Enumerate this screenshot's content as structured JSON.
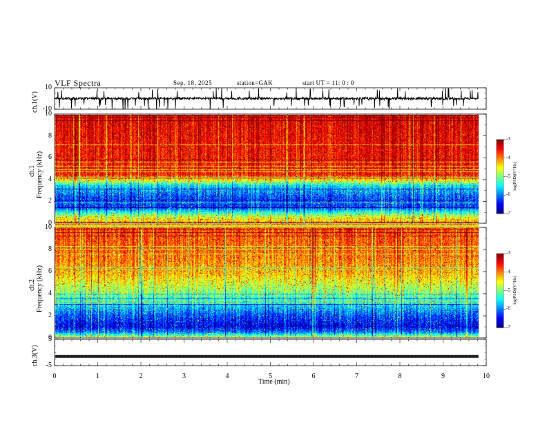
{
  "header": {
    "title": "VLF Spectra",
    "date": "Sep. 18, 2025",
    "station": "station=GAK",
    "start_ut": "start UT =   11: 0  : 0"
  },
  "chart_data": [
    {
      "type": "line",
      "name": "ch1-waveform",
      "ylabel": "ch.1(V)",
      "ylim": [
        -10,
        10
      ],
      "yticks": [
        "10",
        "-10"
      ],
      "xlim": [
        0,
        10
      ],
      "x_data_end": 9.82,
      "baseline": 0,
      "typical_amplitude": 2,
      "spike_amplitude": 10
    },
    {
      "type": "heatmap",
      "name": "ch1-spectrogram",
      "ylabel_line1": "ch.1",
      "ylabel_line2": "Frequency (kHz)",
      "ylim": [
        0,
        10
      ],
      "yticks": [
        "0",
        "2",
        "4",
        "6",
        "8",
        "10"
      ],
      "xlim": [
        0,
        10
      ],
      "x_data_end": 9.82,
      "colorbar": {
        "label": "log(PSD)(V²/Hz)",
        "range": [
          -7,
          -3
        ],
        "ticks": [
          "-3",
          "-4",
          "-5",
          "-6",
          "-7"
        ]
      },
      "level_profile": [
        {
          "f": 0.0,
          "v": -4.2
        },
        {
          "f": 0.5,
          "v": -4.5
        },
        {
          "f": 1.0,
          "v": -5.3
        },
        {
          "f": 1.5,
          "v": -6.3
        },
        {
          "f": 2.5,
          "v": -6.2
        },
        {
          "f": 3.5,
          "v": -5.6
        },
        {
          "f": 4.0,
          "v": -4.5
        },
        {
          "f": 4.5,
          "v": -3.6
        },
        {
          "f": 10.0,
          "v": -3.4
        }
      ],
      "gap_band_khz": [
        -0.5,
        0.0
      ]
    },
    {
      "type": "heatmap",
      "name": "ch2-spectrogram",
      "ylabel_line1": "ch.2",
      "ylabel_line2": "Frequency (kHz)",
      "ylim": [
        0,
        10
      ],
      "yticks": [
        "0",
        "2",
        "4",
        "6",
        "8",
        "10"
      ],
      "xlim": [
        0,
        10
      ],
      "x_data_end": 9.82,
      "colorbar": {
        "label": "log(PSD)(V²/Hz)",
        "range": [
          -7,
          -3
        ],
        "ticks": [
          "-3",
          "-4",
          "-5",
          "-6",
          "-7"
        ]
      },
      "level_profile": [
        {
          "f": 0.0,
          "v": -4.6
        },
        {
          "f": 0.5,
          "v": -6.0
        },
        {
          "f": 1.0,
          "v": -6.6
        },
        {
          "f": 2.0,
          "v": -6.2
        },
        {
          "f": 3.0,
          "v": -5.6
        },
        {
          "f": 4.0,
          "v": -5.0
        },
        {
          "f": 6.0,
          "v": -4.2
        },
        {
          "f": 8.0,
          "v": -3.9
        },
        {
          "f": 10.0,
          "v": -3.8
        }
      ]
    },
    {
      "type": "line",
      "name": "ch3-waveform",
      "ylabel": "ch.3(V)",
      "ylim": [
        -5,
        5
      ],
      "yticks": [
        "5",
        "-5"
      ],
      "xlim": [
        0,
        10
      ],
      "x_data_end": 9.82,
      "baseline": -1.5
    }
  ],
  "x_axis": {
    "label": "Time (min)",
    "ticks": [
      "0",
      "1",
      "2",
      "3",
      "4",
      "5",
      "6",
      "7",
      "8",
      "9",
      "10"
    ]
  }
}
